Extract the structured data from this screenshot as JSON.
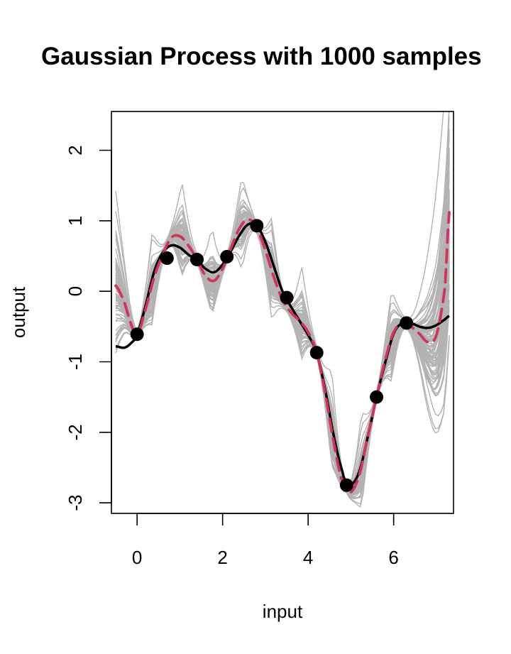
{
  "chart_data": {
    "type": "line",
    "title": "Gaussian Process with 1000 samples",
    "xlabel": "input",
    "ylabel": "output",
    "xlim": [
      -0.6,
      7.4
    ],
    "ylim": [
      -3.15,
      2.55
    ],
    "x_ticks": [
      0,
      2,
      4,
      6
    ],
    "y_ticks": [
      -3,
      -2,
      -1,
      0,
      1,
      2
    ],
    "x_tick_labels": [
      "0",
      "2",
      "4",
      "6"
    ],
    "y_tick_labels": [
      "-3",
      "-2",
      "-1",
      "0",
      "1",
      "2"
    ],
    "observations": {
      "x": [
        0,
        0.7,
        1.4,
        2.1,
        2.8,
        3.5,
        4.2,
        4.9,
        5.6,
        6.3
      ],
      "y": [
        -0.61,
        0.47,
        0.45,
        0.49,
        0.93,
        -0.09,
        -0.87,
        -2.75,
        -1.5,
        -0.45
      ]
    },
    "series": [
      {
        "role": "gp-samples",
        "color": "#b3b3b3",
        "count": 1000,
        "style": "solid"
      },
      {
        "role": "reference",
        "color": "#000000",
        "style": "solid",
        "x": [
          -0.5,
          -0.3,
          -0.15,
          0,
          0.2,
          0.4,
          0.6,
          0.8,
          1.0,
          1.2,
          1.4,
          1.6,
          1.8,
          2.0,
          2.2,
          2.4,
          2.6,
          2.8,
          3.0,
          3.2,
          3.4,
          3.6,
          3.8,
          4.0,
          4.2,
          4.4,
          4.6,
          4.8,
          4.9,
          5.0,
          5.2,
          5.4,
          5.6,
          5.8,
          6.0,
          6.2,
          6.4,
          6.6,
          6.8,
          7.0,
          7.2,
          7.3
        ],
        "y": [
          -0.78,
          -0.8,
          -0.74,
          -0.61,
          -0.2,
          0.28,
          0.55,
          0.65,
          0.62,
          0.52,
          0.44,
          0.32,
          0.27,
          0.38,
          0.58,
          0.8,
          0.95,
          0.93,
          0.7,
          0.35,
          0.0,
          -0.22,
          -0.42,
          -0.62,
          -0.87,
          -1.4,
          -2.05,
          -2.55,
          -2.72,
          -2.75,
          -2.55,
          -2.05,
          -1.5,
          -1.02,
          -0.6,
          -0.45,
          -0.45,
          -0.5,
          -0.52,
          -0.48,
          -0.4,
          -0.35
        ]
      },
      {
        "role": "gp-mean",
        "color": "#d2335c",
        "style": "dashed",
        "x": [
          -0.5,
          -0.3,
          -0.15,
          0,
          0.2,
          0.4,
          0.6,
          0.8,
          1.0,
          1.2,
          1.4,
          1.6,
          1.8,
          2.0,
          2.2,
          2.4,
          2.6,
          2.8,
          3.0,
          3.2,
          3.4,
          3.6,
          3.8,
          4.0,
          4.2,
          4.4,
          4.6,
          4.8,
          4.9,
          5.0,
          5.2,
          5.4,
          5.6,
          5.8,
          6.0,
          6.2,
          6.4,
          6.6,
          6.8,
          7.0,
          7.2,
          7.3
        ],
        "y": [
          0.08,
          -0.15,
          -0.45,
          -0.61,
          -0.25,
          0.2,
          0.52,
          0.76,
          0.78,
          0.65,
          0.45,
          0.22,
          0.15,
          0.32,
          0.62,
          0.9,
          1.02,
          0.9,
          0.58,
          0.2,
          -0.12,
          -0.3,
          -0.42,
          -0.58,
          -0.87,
          -1.45,
          -2.15,
          -2.7,
          -2.8,
          -2.85,
          -2.6,
          -2.05,
          -1.5,
          -0.98,
          -0.58,
          -0.45,
          -0.5,
          -0.6,
          -0.72,
          -0.62,
          0.05,
          1.12
        ]
      }
    ],
    "grid": false,
    "legend": "none"
  }
}
